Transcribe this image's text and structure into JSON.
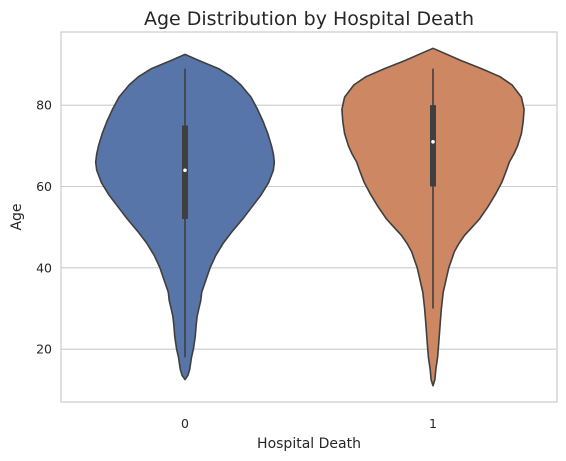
{
  "chart_data": {
    "type": "violin",
    "title": "Age Distribution by Hospital Death",
    "xlabel": "Hospital Death",
    "ylabel": "Age",
    "categories": [
      "0",
      "1"
    ],
    "ylim": [
      7,
      98
    ],
    "yticks": [
      20,
      40,
      60,
      80
    ],
    "grid": "horizontal",
    "colors": [
      "#5875a9",
      "#cd8762"
    ],
    "series": [
      {
        "category": "0",
        "color": "#5875a9",
        "range": [
          12.5,
          92.5
        ],
        "whiskers": [
          18,
          89
        ],
        "quartiles": [
          52,
          75
        ],
        "median": 64,
        "density_profile": [
          [
            12.5,
            0.0
          ],
          [
            13.5,
            0.03
          ],
          [
            15,
            0.05
          ],
          [
            18,
            0.07
          ],
          [
            20,
            0.09
          ],
          [
            23,
            0.11
          ],
          [
            26,
            0.12
          ],
          [
            28,
            0.13
          ],
          [
            30,
            0.15
          ],
          [
            32,
            0.17
          ],
          [
            34,
            0.18
          ],
          [
            36,
            0.21
          ],
          [
            38,
            0.24
          ],
          [
            40,
            0.27
          ],
          [
            43,
            0.33
          ],
          [
            46,
            0.41
          ],
          [
            49,
            0.51
          ],
          [
            52,
            0.62
          ],
          [
            55,
            0.72
          ],
          [
            58,
            0.82
          ],
          [
            61,
            0.9
          ],
          [
            64,
            0.95
          ],
          [
            66,
            0.96
          ],
          [
            68,
            0.95
          ],
          [
            70,
            0.93
          ],
          [
            73,
            0.89
          ],
          [
            76,
            0.84
          ],
          [
            79,
            0.78
          ],
          [
            82,
            0.71
          ],
          [
            85,
            0.6
          ],
          [
            87,
            0.5
          ],
          [
            89,
            0.36
          ],
          [
            91,
            0.15
          ],
          [
            92.5,
            0.0
          ]
        ]
      },
      {
        "category": "1",
        "color": "#cd8762",
        "range": [
          11,
          94
        ],
        "whiskers": [
          30,
          89
        ],
        "quartiles": [
          60,
          80
        ],
        "median": 71,
        "density_profile": [
          [
            11,
            0.0
          ],
          [
            12.5,
            0.02
          ],
          [
            15,
            0.03
          ],
          [
            18,
            0.05
          ],
          [
            21,
            0.06
          ],
          [
            24,
            0.07
          ],
          [
            27,
            0.08
          ],
          [
            30,
            0.09
          ],
          [
            32,
            0.1
          ],
          [
            34,
            0.11
          ],
          [
            36,
            0.13
          ],
          [
            38,
            0.15
          ],
          [
            40,
            0.17
          ],
          [
            42,
            0.2
          ],
          [
            44,
            0.23
          ],
          [
            46,
            0.28
          ],
          [
            48,
            0.34
          ],
          [
            50,
            0.42
          ],
          [
            52,
            0.5
          ],
          [
            55,
            0.59
          ],
          [
            58,
            0.67
          ],
          [
            61,
            0.74
          ],
          [
            64,
            0.79
          ],
          [
            66,
            0.82
          ],
          [
            68,
            0.87
          ],
          [
            70,
            0.91
          ],
          [
            73,
            0.95
          ],
          [
            76,
            0.97
          ],
          [
            79,
            0.98
          ],
          [
            82,
            0.95
          ],
          [
            85,
            0.85
          ],
          [
            87,
            0.72
          ],
          [
            89,
            0.52
          ],
          [
            91,
            0.3
          ],
          [
            93,
            0.1
          ],
          [
            94,
            0.0
          ]
        ]
      }
    ]
  }
}
